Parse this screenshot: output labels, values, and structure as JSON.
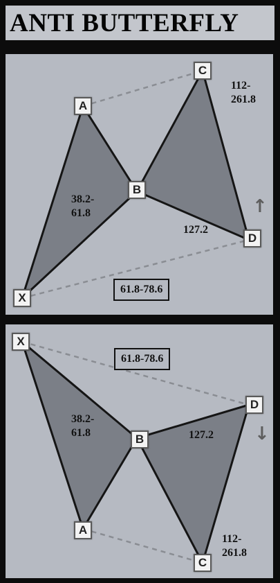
{
  "title": "ANTI BUTTERFLY",
  "colors": {
    "fill": "#7b7f87",
    "edge": "#151515",
    "dash": "#8a8d93",
    "panel": "#b6bac2"
  },
  "patterns": [
    {
      "id": "bearish",
      "points": {
        "X": "X",
        "A": "A",
        "B": "B",
        "C": "C",
        "D": "D"
      },
      "ratios": {
        "xab": "38.2-\n61.8",
        "bcd": "127.2",
        "abc": "112-\n261.8",
        "xad": "61.8-78.6"
      },
      "arrow": "up-arrow-icon"
    },
    {
      "id": "bullish",
      "points": {
        "X": "X",
        "A": "A",
        "B": "B",
        "C": "C",
        "D": "D"
      },
      "ratios": {
        "xab": "38.2-\n61.8",
        "bcd": "127.2",
        "abc": "112-\n261.8",
        "xad": "61.8-78.6"
      },
      "arrow": "down-arrow-icon"
    }
  ]
}
